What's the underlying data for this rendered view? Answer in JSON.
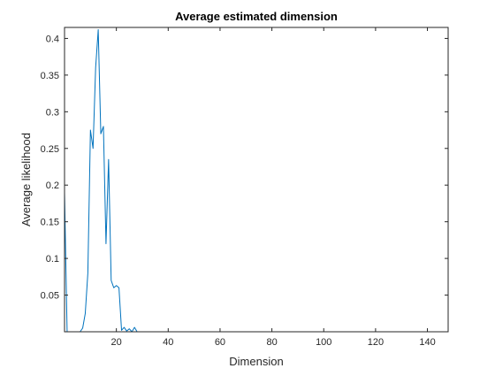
{
  "chart_data": {
    "type": "line",
    "title": "Average estimated dimension",
    "xlabel": "Dimension",
    "ylabel": "Average likelihood",
    "xlim": [
      0,
      148
    ],
    "ylim": [
      0,
      0.415
    ],
    "xticks": [
      20,
      40,
      60,
      80,
      100,
      120,
      140
    ],
    "yticks": [
      0.05,
      0.1,
      0.15,
      0.2,
      0.25,
      0.3,
      0.35,
      0.4
    ],
    "xtick_labels": [
      "20",
      "40",
      "60",
      "80",
      "100",
      "120",
      "140"
    ],
    "ytick_labels": [
      "0.05",
      "0.1",
      "0.15",
      "0.2",
      "0.25",
      "0.3",
      "0.35",
      "0.4"
    ],
    "grid": false,
    "series": [
      {
        "color": "#0072BD",
        "x": [
          0,
          1,
          2,
          3,
          4,
          5,
          6,
          7,
          8,
          9,
          10,
          11,
          12,
          13,
          14,
          15,
          16,
          17,
          18,
          19,
          20,
          21,
          22,
          23,
          24,
          25,
          26,
          27,
          28,
          148
        ],
        "y": [
          0.19,
          0.0,
          0.0,
          0.0,
          0.0,
          0.0,
          0.0,
          0.005,
          0.025,
          0.08,
          0.275,
          0.25,
          0.36,
          0.412,
          0.27,
          0.28,
          0.12,
          0.235,
          0.07,
          0.06,
          0.063,
          0.06,
          0.002,
          0.006,
          0.001,
          0.004,
          0.0,
          0.006,
          0.0,
          0.0
        ]
      }
    ]
  }
}
